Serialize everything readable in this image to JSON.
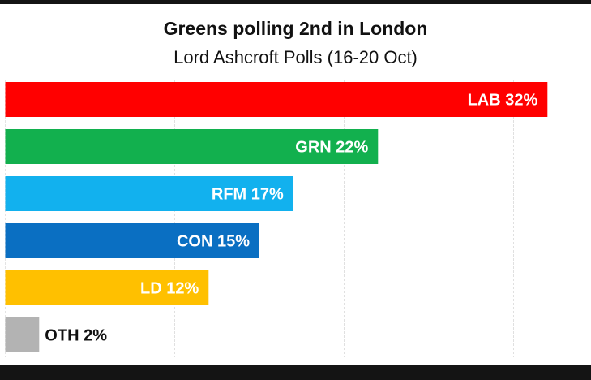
{
  "chart_data": {
    "type": "bar",
    "orientation": "horizontal",
    "title": "Greens polling 2nd in London",
    "subtitle": "Lord Ashcroft Polls (16-20 Oct)",
    "categories": [
      "LAB",
      "GRN",
      "RFM",
      "CON",
      "LD",
      "OTH"
    ],
    "values": [
      32,
      22,
      17,
      15,
      12,
      2
    ],
    "labels": [
      "LAB 32%",
      "GRN 22%",
      "RFM 17%",
      "CON 15%",
      "LD 12%",
      "OTH 2%"
    ],
    "colors": [
      "#ff0000",
      "#12b04e",
      "#12b1ee",
      "#0a6fc2",
      "#ffc000",
      "#b3b3b3"
    ],
    "xlim": [
      0,
      32
    ],
    "gridlines": [
      10,
      20,
      30
    ],
    "grid": true,
    "legend": "none"
  }
}
